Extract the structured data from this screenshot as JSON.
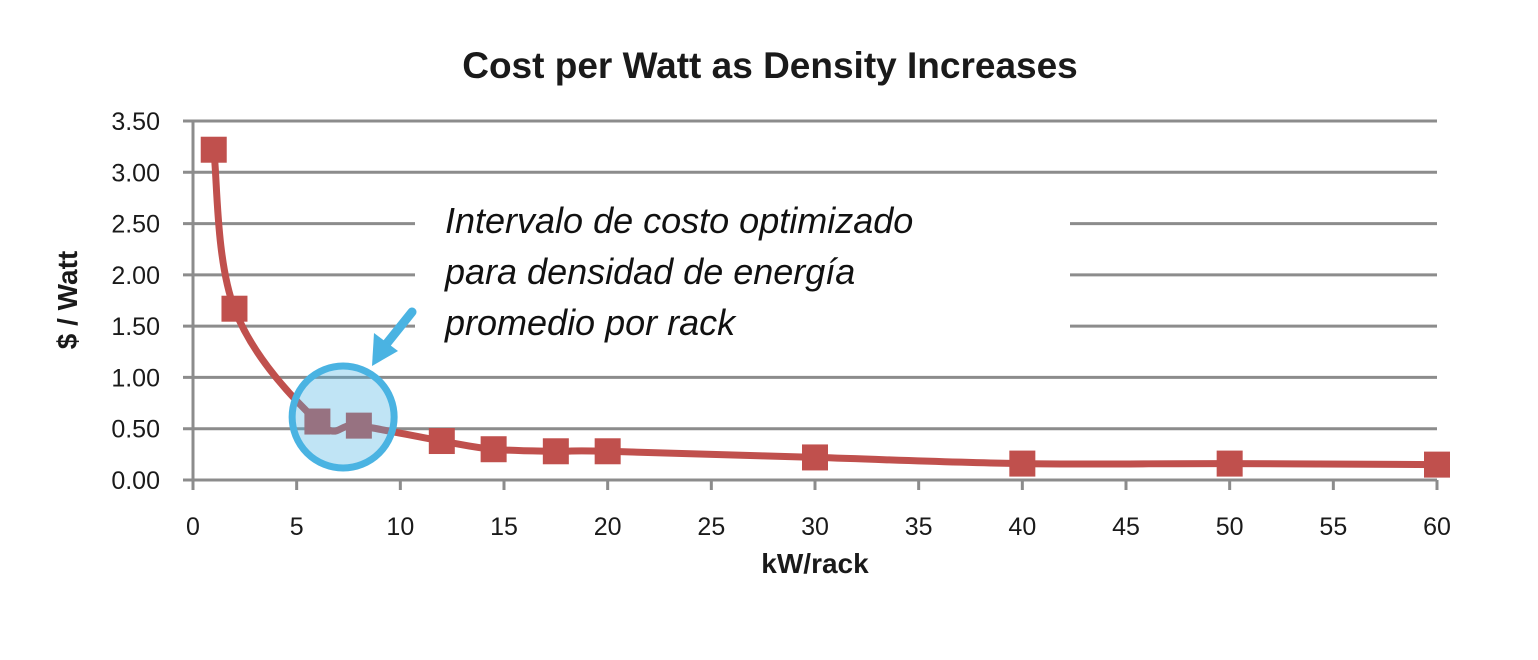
{
  "chart_data": {
    "type": "line",
    "title": "Cost per Watt as Density Increases",
    "xlabel": "kW/rack",
    "ylabel": "$ / Watt",
    "xlim": [
      0,
      60
    ],
    "ylim": [
      0,
      3.5
    ],
    "x_ticks": [
      "0",
      "5",
      "10",
      "15",
      "20",
      "25",
      "30",
      "35",
      "40",
      "45",
      "50",
      "55",
      "60"
    ],
    "y_ticks": [
      "0.00",
      "0.50",
      "1.00",
      "1.50",
      "2.00",
      "2.50",
      "3.00",
      "3.50"
    ],
    "grid": true,
    "series": [
      {
        "color": "#c0504d",
        "marker": "square",
        "x": [
          1,
          2,
          6,
          8,
          12,
          14.5,
          17.5,
          20,
          30,
          40,
          50,
          60
        ],
        "y": [
          3.22,
          1.67,
          0.57,
          0.53,
          0.38,
          0.3,
          0.28,
          0.28,
          0.22,
          0.16,
          0.16,
          0.15
        ]
      }
    ],
    "annotation": {
      "lines": [
        "Intervalo de costo optimizado",
        "para densidad de energía",
        "promedio por rack"
      ],
      "highlight_color": "#4ab3e2",
      "arrow_color": "#4ab3e2",
      "highlight_x_range": [
        5,
        9
      ]
    }
  }
}
